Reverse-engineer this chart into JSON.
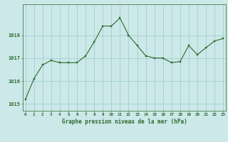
{
  "x": [
    0,
    1,
    2,
    3,
    4,
    5,
    6,
    7,
    8,
    9,
    10,
    11,
    12,
    13,
    14,
    15,
    16,
    17,
    18,
    19,
    20,
    21,
    22,
    23
  ],
  "y": [
    1015.2,
    1016.1,
    1016.7,
    1016.9,
    1016.8,
    1016.8,
    1016.8,
    1017.1,
    1017.7,
    1018.4,
    1018.4,
    1018.75,
    1018.0,
    1017.55,
    1017.1,
    1017.0,
    1017.0,
    1016.8,
    1016.85,
    1017.55,
    1017.15,
    1017.45,
    1017.75,
    1017.85
  ],
  "line_color": "#2d6a2d",
  "marker_color": "#2d6a2d",
  "bg_color": "#cce8e8",
  "grid_color": "#99cccc",
  "xlabel": "Graphe pression niveau de la mer (hPa)",
  "xlabel_color": "#2d6a2d",
  "ylim_min": 1014.7,
  "ylim_max": 1019.35,
  "yticks": [
    1015,
    1016,
    1017,
    1018
  ],
  "tick_color": "#2d6a2d",
  "spine_color": "#2d6a2d",
  "bottom_bar_color": "#2d6a2d"
}
